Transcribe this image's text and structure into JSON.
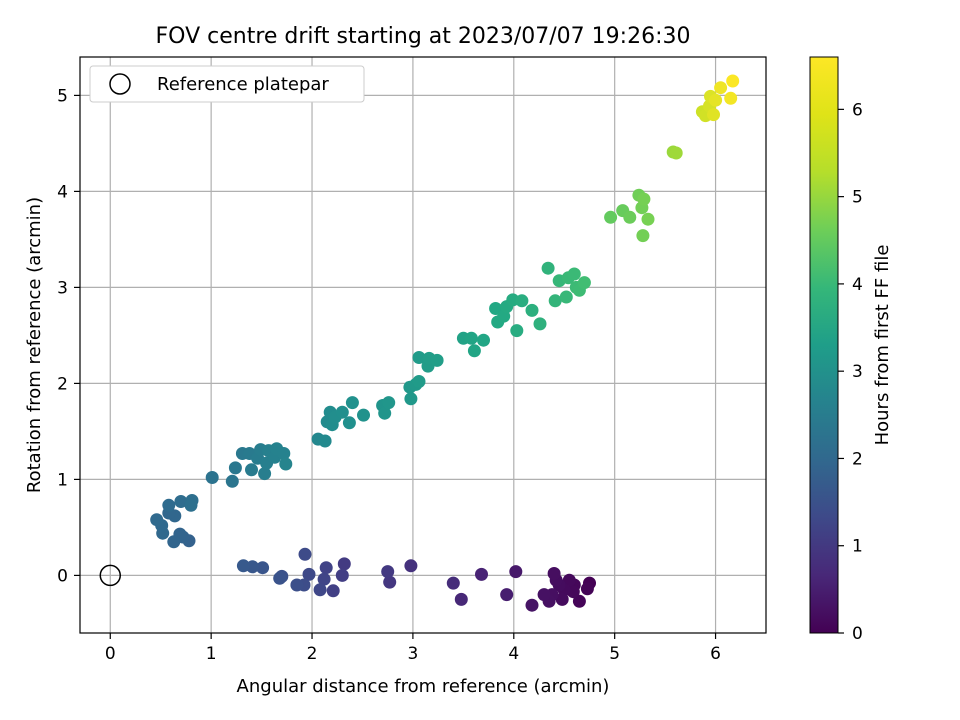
{
  "chart_data": {
    "type": "scatter",
    "title": "FOV centre drift starting at 2023/07/07 19:26:30",
    "xlabel": "Angular distance from reference (arcmin)",
    "ylabel": "Rotation from reference (arcmin)",
    "xlim": [
      -0.3,
      6.5
    ],
    "ylim": [
      -0.6,
      5.4
    ],
    "xticks": [
      0,
      1,
      2,
      3,
      4,
      5,
      6
    ],
    "yticks": [
      0,
      1,
      2,
      3,
      4,
      5
    ],
    "grid": true,
    "legend": {
      "position": "top-left",
      "entries": [
        "Reference platepar"
      ]
    },
    "reference_point": {
      "x": 0,
      "y": 0
    },
    "colorbar": {
      "label": "Hours from first FF file",
      "range": [
        0,
        6.6
      ],
      "ticks": [
        0,
        1,
        2,
        3,
        4,
        5,
        6
      ],
      "colormap": "viridis"
    },
    "series": [
      {
        "points": [
          [
            4.75,
            -0.08,
            0.0
          ],
          [
            4.73,
            -0.14,
            0.05
          ],
          [
            4.65,
            -0.27,
            0.08
          ],
          [
            4.6,
            -0.1,
            0.1
          ],
          [
            4.59,
            -0.17,
            0.12
          ],
          [
            4.55,
            -0.05,
            0.14
          ],
          [
            4.5,
            -0.15,
            0.16
          ],
          [
            4.48,
            -0.25,
            0.18
          ],
          [
            4.45,
            -0.1,
            0.2
          ],
          [
            4.42,
            -0.05,
            0.22
          ],
          [
            4.4,
            0.02,
            0.24
          ],
          [
            4.38,
            -0.2,
            0.26
          ],
          [
            4.35,
            -0.27,
            0.28
          ],
          [
            4.3,
            -0.2,
            0.3
          ],
          [
            4.18,
            -0.31,
            0.35
          ],
          [
            4.02,
            0.04,
            0.45
          ],
          [
            3.93,
            -0.2,
            0.55
          ],
          [
            3.68,
            0.01,
            0.65
          ],
          [
            3.48,
            -0.25,
            0.75
          ],
          [
            3.4,
            -0.08,
            0.85
          ],
          [
            2.98,
            0.1,
            0.95
          ],
          [
            2.77,
            -0.07,
            1.05
          ],
          [
            2.75,
            0.04,
            1.1
          ],
          [
            2.32,
            0.12,
            1.15
          ],
          [
            2.3,
            0.0,
            1.2
          ],
          [
            2.21,
            -0.16,
            1.25
          ],
          [
            2.14,
            0.08,
            1.3
          ],
          [
            2.12,
            -0.04,
            1.35
          ],
          [
            2.08,
            -0.15,
            1.4
          ],
          [
            1.97,
            0.01,
            1.45
          ],
          [
            1.93,
            0.22,
            1.5
          ],
          [
            1.92,
            -0.1,
            1.55
          ],
          [
            1.85,
            -0.1,
            1.6
          ],
          [
            1.7,
            -0.01,
            1.65
          ],
          [
            1.68,
            -0.03,
            1.7
          ],
          [
            1.51,
            0.08,
            1.75
          ],
          [
            1.41,
            0.09,
            1.8
          ],
          [
            1.32,
            0.1,
            1.85
          ],
          [
            0.78,
            0.36,
            2.05
          ],
          [
            0.72,
            0.4,
            2.1
          ],
          [
            0.69,
            0.43,
            2.12
          ],
          [
            0.63,
            0.35,
            2.15
          ],
          [
            0.64,
            0.62,
            2.18
          ],
          [
            0.58,
            0.65,
            2.2
          ],
          [
            0.52,
            0.44,
            2.22
          ],
          [
            0.51,
            0.52,
            2.25
          ],
          [
            0.46,
            0.58,
            2.28
          ],
          [
            0.58,
            0.73,
            2.3
          ],
          [
            0.7,
            0.77,
            2.35
          ],
          [
            0.81,
            0.78,
            2.4
          ],
          [
            0.8,
            0.73,
            2.42
          ],
          [
            1.01,
            1.02,
            2.5
          ],
          [
            1.21,
            0.98,
            2.55
          ],
          [
            1.24,
            1.12,
            2.6
          ],
          [
            1.31,
            1.27,
            2.65
          ],
          [
            1.38,
            1.27,
            2.7
          ],
          [
            1.4,
            1.1,
            2.72
          ],
          [
            1.46,
            1.22,
            2.75
          ],
          [
            1.49,
            1.31,
            2.78
          ],
          [
            1.53,
            1.06,
            2.8
          ],
          [
            1.55,
            1.17,
            2.82
          ],
          [
            1.57,
            1.3,
            2.85
          ],
          [
            1.63,
            1.23,
            2.88
          ],
          [
            1.65,
            1.32,
            2.9
          ],
          [
            1.72,
            1.27,
            2.92
          ],
          [
            1.74,
            1.16,
            2.95
          ],
          [
            2.06,
            1.42,
            3.05
          ],
          [
            2.13,
            1.4,
            3.1
          ],
          [
            2.15,
            1.6,
            3.15
          ],
          [
            2.18,
            1.7,
            3.18
          ],
          [
            2.2,
            1.57,
            3.2
          ],
          [
            2.23,
            1.65,
            3.22
          ],
          [
            2.3,
            1.7,
            3.25
          ],
          [
            2.37,
            1.59,
            3.28
          ],
          [
            2.4,
            1.8,
            3.3
          ],
          [
            2.51,
            1.67,
            3.35
          ],
          [
            2.7,
            1.77,
            3.4
          ],
          [
            2.72,
            1.69,
            3.42
          ],
          [
            2.76,
            1.8,
            3.45
          ],
          [
            2.97,
            1.96,
            3.5
          ],
          [
            2.98,
            1.84,
            3.52
          ],
          [
            3.03,
            1.99,
            3.55
          ],
          [
            3.06,
            2.02,
            3.58
          ],
          [
            3.06,
            2.27,
            3.6
          ],
          [
            3.15,
            2.18,
            3.62
          ],
          [
            3.16,
            2.26,
            3.65
          ],
          [
            3.24,
            2.24,
            3.68
          ],
          [
            3.5,
            2.47,
            3.8
          ],
          [
            3.58,
            2.47,
            3.85
          ],
          [
            3.61,
            2.34,
            3.88
          ],
          [
            3.7,
            2.45,
            3.9
          ],
          [
            3.82,
            2.78,
            3.95
          ],
          [
            3.84,
            2.64,
            3.98
          ],
          [
            3.9,
            2.7,
            4.0
          ],
          [
            3.93,
            2.8,
            4.02
          ],
          [
            3.99,
            2.87,
            4.05
          ],
          [
            4.03,
            2.55,
            4.08
          ],
          [
            4.08,
            2.86,
            4.1
          ],
          [
            4.18,
            2.76,
            4.15
          ],
          [
            4.26,
            2.62,
            4.2
          ],
          [
            4.34,
            3.2,
            4.25
          ],
          [
            4.41,
            2.86,
            4.3
          ],
          [
            4.45,
            3.07,
            4.35
          ],
          [
            4.52,
            2.9,
            4.38
          ],
          [
            4.54,
            3.1,
            4.42
          ],
          [
            4.6,
            3.14,
            4.45
          ],
          [
            4.62,
            3.0,
            4.48
          ],
          [
            4.65,
            2.97,
            4.5
          ],
          [
            4.7,
            3.05,
            4.55
          ],
          [
            4.96,
            3.73,
            5.0
          ],
          [
            5.08,
            3.8,
            5.05
          ],
          [
            5.15,
            3.73,
            5.1
          ],
          [
            5.24,
            3.96,
            5.15
          ],
          [
            5.27,
            3.83,
            5.18
          ],
          [
            5.28,
            3.54,
            5.2
          ],
          [
            5.29,
            3.92,
            5.22
          ],
          [
            5.33,
            3.71,
            5.25
          ],
          [
            5.58,
            4.41,
            5.6
          ],
          [
            5.61,
            4.4,
            5.65
          ],
          [
            5.87,
            4.83,
            6.1
          ],
          [
            5.9,
            4.79,
            6.15
          ],
          [
            5.94,
            4.89,
            6.2
          ],
          [
            5.95,
            4.99,
            6.25
          ],
          [
            5.98,
            4.8,
            6.3
          ],
          [
            6.0,
            4.95,
            6.35
          ],
          [
            6.05,
            5.08,
            6.45
          ],
          [
            6.15,
            4.97,
            6.5
          ],
          [
            6.17,
            5.15,
            6.58
          ]
        ]
      }
    ]
  }
}
